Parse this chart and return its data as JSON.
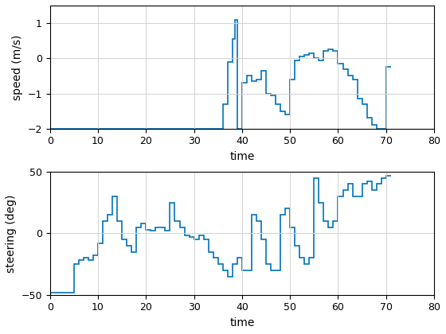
{
  "speed_times": [
    0,
    35,
    36,
    37,
    38,
    39,
    40,
    41,
    42,
    43,
    44,
    45,
    46,
    47,
    48,
    49,
    50,
    51,
    52,
    53,
    54,
    55,
    56,
    57,
    58,
    59,
    60,
    61,
    62,
    63,
    64,
    65,
    66,
    67,
    68,
    69,
    70,
    71
  ],
  "speed_values": [
    -2,
    -2,
    -1.3,
    -0.1,
    0.55,
    1.1,
    -2,
    -0.7,
    -0.5,
    -0.6,
    -0.65,
    -0.35,
    -1.0,
    -1.05,
    -1.3,
    -1.5,
    -1.6,
    -0.6,
    -0.05,
    0.05,
    0.1,
    0.15,
    0.0,
    -0.05,
    0.2,
    0.25,
    0.2,
    -0.15,
    -0.3,
    -0.5,
    -0.6,
    -1.15,
    -1.3,
    -1.7,
    -1.9,
    -2.0,
    -0.25,
    -0.25
  ],
  "steer_times": [
    0,
    4,
    5,
    6,
    7,
    8,
    9,
    10,
    11,
    12,
    13,
    14,
    15,
    16,
    17,
    18,
    19,
    20,
    21,
    22,
    23,
    24,
    25,
    26,
    27,
    28,
    29,
    30,
    31,
    32,
    33,
    34,
    35,
    36,
    37,
    38,
    39,
    40,
    41,
    42,
    43,
    44,
    45,
    46,
    47,
    48,
    49,
    50,
    51,
    52,
    53,
    54,
    55,
    56,
    57,
    58,
    59,
    60,
    61,
    62,
    63,
    64,
    65,
    66,
    67,
    68,
    69,
    70,
    71
  ],
  "steer_values": [
    -48,
    -48,
    -25,
    -22,
    -20,
    -22,
    -18,
    -8,
    10,
    15,
    30,
    10,
    -5,
    -10,
    -15,
    5,
    8,
    3,
    2,
    5,
    5,
    2,
    25,
    10,
    5,
    -2,
    -3,
    -5,
    -2,
    -5,
    -15,
    -20,
    -25,
    -30,
    -35,
    -25,
    -20,
    -30,
    -30,
    15,
    10,
    -5,
    -25,
    -30,
    -30,
    15,
    20,
    5,
    -10,
    -20,
    -25,
    -20,
    45,
    25,
    10,
    5,
    10,
    30,
    35,
    40,
    30,
    30,
    40,
    42,
    35,
    40,
    45,
    47,
    47
  ],
  "speed_xlim": [
    0,
    80
  ],
  "speed_ylim": [
    -2,
    1.5
  ],
  "steer_xlim": [
    0,
    80
  ],
  "steer_ylim": [
    -50,
    50
  ],
  "speed_xlabel": "time",
  "speed_ylabel": "speed (m/s)",
  "steer_xlabel": "time",
  "steer_ylabel": "steering (deg)",
  "line_color": "#0072BD",
  "speed_yticks": [
    -2,
    -1,
    0,
    1
  ],
  "steer_yticks": [
    -50,
    0,
    50
  ],
  "xticks": [
    0,
    10,
    20,
    30,
    40,
    50,
    60,
    70,
    80
  ]
}
